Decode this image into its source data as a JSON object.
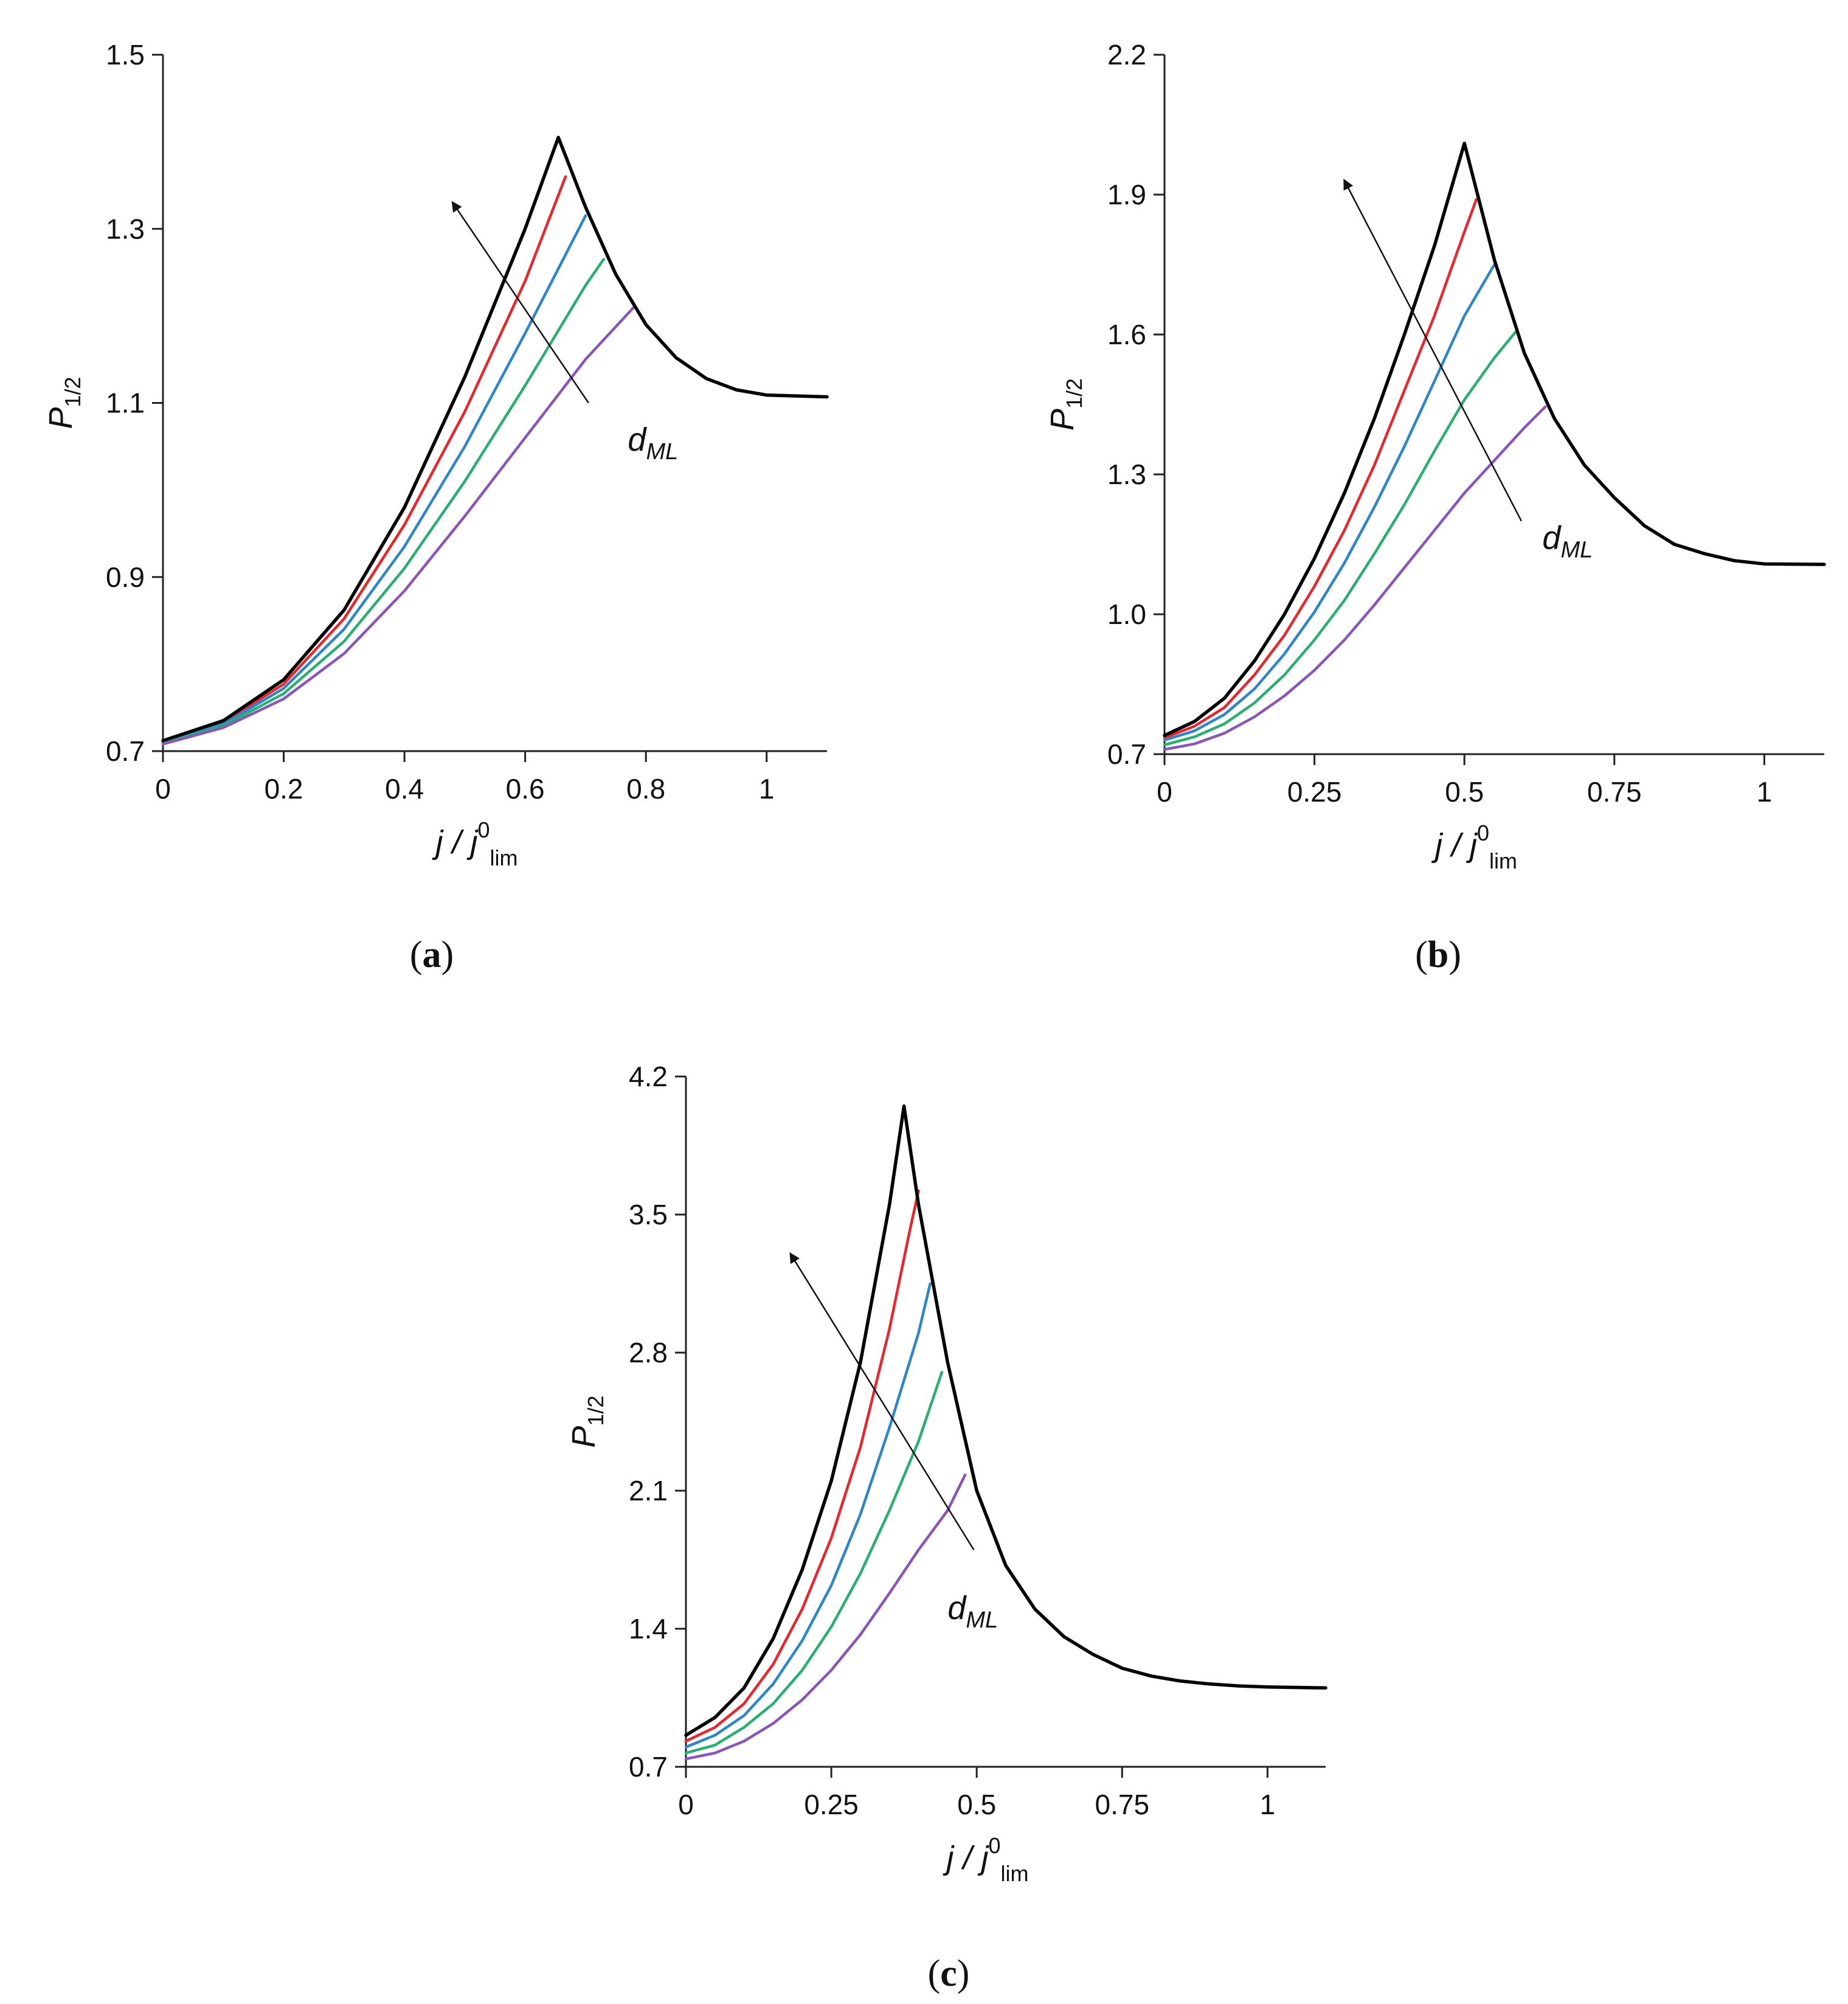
{
  "figure": {
    "panel_labels": [
      {
        "open": "(",
        "letter": "a",
        "close": ")"
      },
      {
        "open": "(",
        "letter": "b",
        "close": ")"
      },
      {
        "open": "(",
        "letter": "c",
        "close": ")"
      }
    ]
  },
  "colors": {
    "black": "#000000",
    "red": "#e8262b",
    "blue": "#2e86c8",
    "green": "#2aae72",
    "purple": "#8a55b8",
    "axis": "#222222"
  },
  "chart_data": [
    {
      "type": "line",
      "panel": "a",
      "xlabel": {
        "main": "j / j",
        "sup": "0",
        "sub": "lim"
      },
      "ylabel": {
        "main": "P",
        "sub": "1/2"
      },
      "xlim": [
        0,
        1.1
      ],
      "ylim": [
        0.7,
        1.5
      ],
      "xticks": [
        0,
        0.2,
        0.4,
        0.6,
        0.8,
        1
      ],
      "xtick_labels": [
        "0",
        "0.2",
        "0.4",
        "0.6",
        "0.8",
        "1"
      ],
      "yticks": [
        0.7,
        0.9,
        1.1,
        1.3,
        1.5
      ],
      "ytick_labels": [
        "0.7",
        "0.9",
        "1.1",
        "1.3",
        "1.5"
      ],
      "grid": false,
      "annotation": {
        "text_main": "d",
        "text_sub": "ML",
        "arrow_from": [
          0.705,
          1.1
        ],
        "arrow_to": [
          0.48,
          1.33
        ],
        "text_at": [
          0.77,
          1.045
        ]
      },
      "series": [
        {
          "color": "black",
          "values": [
            [
              0,
              0.712
            ],
            [
              0.1,
              0.735
            ],
            [
              0.2,
              0.782
            ],
            [
              0.3,
              0.862
            ],
            [
              0.4,
              0.98
            ],
            [
              0.5,
              1.13
            ],
            [
              0.6,
              1.3
            ],
            [
              0.655,
              1.405
            ],
            [
              0.7,
              1.325
            ],
            [
              0.75,
              1.248
            ],
            [
              0.8,
              1.19
            ],
            [
              0.85,
              1.152
            ],
            [
              0.9,
              1.128
            ],
            [
              0.95,
              1.115
            ],
            [
              1.0,
              1.109
            ],
            [
              1.1,
              1.107
            ]
          ]
        },
        {
          "color": "red",
          "values": [
            [
              0,
              0.711
            ],
            [
              0.1,
              0.733
            ],
            [
              0.2,
              0.777
            ],
            [
              0.3,
              0.852
            ],
            [
              0.4,
              0.96
            ],
            [
              0.5,
              1.09
            ],
            [
              0.6,
              1.24
            ],
            [
              0.667,
              1.36
            ]
          ]
        },
        {
          "color": "blue",
          "values": [
            [
              0,
              0.71
            ],
            [
              0.1,
              0.731
            ],
            [
              0.2,
              0.772
            ],
            [
              0.3,
              0.84
            ],
            [
              0.4,
              0.935
            ],
            [
              0.5,
              1.05
            ],
            [
              0.6,
              1.18
            ],
            [
              0.7,
              1.315
            ]
          ]
        },
        {
          "color": "green",
          "values": [
            [
              0,
              0.709
            ],
            [
              0.1,
              0.729
            ],
            [
              0.2,
              0.766
            ],
            [
              0.3,
              0.826
            ],
            [
              0.4,
              0.91
            ],
            [
              0.5,
              1.01
            ],
            [
              0.6,
              1.12
            ],
            [
              0.7,
              1.235
            ],
            [
              0.73,
              1.265
            ]
          ]
        },
        {
          "color": "purple",
          "values": [
            [
              0,
              0.708
            ],
            [
              0.1,
              0.727
            ],
            [
              0.2,
              0.76
            ],
            [
              0.3,
              0.812
            ],
            [
              0.4,
              0.884
            ],
            [
              0.5,
              0.97
            ],
            [
              0.6,
              1.06
            ],
            [
              0.7,
              1.15
            ],
            [
              0.78,
              1.21
            ]
          ]
        }
      ]
    },
    {
      "type": "line",
      "panel": "b",
      "xlabel": {
        "main": "j / j",
        "sup": "0",
        "sub": "lim"
      },
      "ylabel": {
        "main": "P",
        "sub": "1/2"
      },
      "xlim": [
        0,
        1.1
      ],
      "ylim": [
        0.7,
        2.2
      ],
      "xticks": [
        0,
        0.25,
        0.5,
        0.75,
        1
      ],
      "xtick_labels": [
        "0",
        "0.25",
        "0.5",
        "0.75",
        "1"
      ],
      "yticks": [
        0.7,
        1.0,
        1.3,
        1.6,
        1.9,
        2.2
      ],
      "ytick_labels": [
        "0.7",
        "1.0",
        "1.3",
        "1.6",
        "1.9",
        "2.2"
      ],
      "grid": false,
      "annotation": {
        "text_main": "d",
        "text_sub": "ML",
        "arrow_from": [
          0.595,
          1.2
        ],
        "arrow_to": [
          0.3,
          1.93
        ],
        "text_at": [
          0.63,
          1.14
        ]
      },
      "series": [
        {
          "color": "black",
          "values": [
            [
              0,
              0.74
            ],
            [
              0.05,
              0.77
            ],
            [
              0.1,
              0.82
            ],
            [
              0.15,
              0.9
            ],
            [
              0.2,
              1.0
            ],
            [
              0.25,
              1.12
            ],
            [
              0.3,
              1.26
            ],
            [
              0.35,
              1.42
            ],
            [
              0.4,
              1.6
            ],
            [
              0.45,
              1.79
            ],
            [
              0.5,
              2.01
            ],
            [
              0.55,
              1.76
            ],
            [
              0.6,
              1.56
            ],
            [
              0.65,
              1.42
            ],
            [
              0.7,
              1.32
            ],
            [
              0.75,
              1.25
            ],
            [
              0.8,
              1.19
            ],
            [
              0.85,
              1.15
            ],
            [
              0.9,
              1.13
            ],
            [
              0.95,
              1.115
            ],
            [
              1.0,
              1.108
            ],
            [
              1.1,
              1.107
            ]
          ]
        },
        {
          "color": "red",
          "values": [
            [
              0,
              0.735
            ],
            [
              0.05,
              0.76
            ],
            [
              0.1,
              0.8
            ],
            [
              0.15,
              0.87
            ],
            [
              0.2,
              0.955
            ],
            [
              0.25,
              1.06
            ],
            [
              0.3,
              1.18
            ],
            [
              0.35,
              1.32
            ],
            [
              0.4,
              1.48
            ],
            [
              0.45,
              1.64
            ],
            [
              0.5,
              1.82
            ],
            [
              0.52,
              1.89
            ]
          ]
        },
        {
          "color": "blue",
          "values": [
            [
              0,
              0.73
            ],
            [
              0.05,
              0.75
            ],
            [
              0.1,
              0.785
            ],
            [
              0.15,
              0.84
            ],
            [
              0.2,
              0.915
            ],
            [
              0.25,
              1.005
            ],
            [
              0.3,
              1.11
            ],
            [
              0.35,
              1.23
            ],
            [
              0.4,
              1.36
            ],
            [
              0.45,
              1.5
            ],
            [
              0.5,
              1.64
            ],
            [
              0.55,
              1.75
            ]
          ]
        },
        {
          "color": "green",
          "values": [
            [
              0,
              0.72
            ],
            [
              0.05,
              0.737
            ],
            [
              0.1,
              0.765
            ],
            [
              0.15,
              0.81
            ],
            [
              0.2,
              0.87
            ],
            [
              0.25,
              0.945
            ],
            [
              0.3,
              1.03
            ],
            [
              0.35,
              1.13
            ],
            [
              0.4,
              1.235
            ],
            [
              0.45,
              1.35
            ],
            [
              0.5,
              1.46
            ],
            [
              0.55,
              1.55
            ],
            [
              0.585,
              1.605
            ]
          ]
        },
        {
          "color": "purple",
          "values": [
            [
              0,
              0.71
            ],
            [
              0.05,
              0.722
            ],
            [
              0.1,
              0.745
            ],
            [
              0.15,
              0.78
            ],
            [
              0.2,
              0.825
            ],
            [
              0.25,
              0.88
            ],
            [
              0.3,
              0.945
            ],
            [
              0.35,
              1.02
            ],
            [
              0.4,
              1.1
            ],
            [
              0.45,
              1.18
            ],
            [
              0.5,
              1.26
            ],
            [
              0.55,
              1.33
            ],
            [
              0.6,
              1.4
            ],
            [
              0.635,
              1.445
            ]
          ]
        }
      ]
    },
    {
      "type": "line",
      "panel": "c",
      "xlabel": {
        "main": "j / j",
        "sup": "0",
        "sub": "lim"
      },
      "ylabel": {
        "main": "P",
        "sub": "1/2"
      },
      "xlim": [
        0,
        1.1
      ],
      "ylim": [
        0.7,
        4.2
      ],
      "xticks": [
        0,
        0.25,
        0.5,
        0.75,
        1
      ],
      "xtick_labels": [
        "0",
        "0.25",
        "0.5",
        "0.75",
        "1"
      ],
      "yticks": [
        0.7,
        1.4,
        2.1,
        2.8,
        3.5,
        4.2
      ],
      "ytick_labels": [
        "0.7",
        "1.4",
        "2.1",
        "2.8",
        "3.5",
        "4.2"
      ],
      "grid": false,
      "annotation": {
        "text_main": "d",
        "text_sub": "ML",
        "arrow_from": [
          0.495,
          1.8
        ],
        "arrow_to": [
          0.18,
          3.3
        ],
        "text_at": [
          0.45,
          1.45
        ]
      },
      "series": [
        {
          "color": "black",
          "values": [
            [
              0,
              0.86
            ],
            [
              0.05,
              0.95
            ],
            [
              0.1,
              1.1
            ],
            [
              0.15,
              1.35
            ],
            [
              0.2,
              1.7
            ],
            [
              0.25,
              2.15
            ],
            [
              0.3,
              2.75
            ],
            [
              0.35,
              3.55
            ],
            [
              0.375,
              4.05
            ],
            [
              0.4,
              3.55
            ],
            [
              0.45,
              2.75
            ],
            [
              0.5,
              2.1
            ],
            [
              0.55,
              1.72
            ],
            [
              0.6,
              1.5
            ],
            [
              0.65,
              1.36
            ],
            [
              0.7,
              1.27
            ],
            [
              0.75,
              1.2
            ],
            [
              0.8,
              1.16
            ],
            [
              0.85,
              1.135
            ],
            [
              0.9,
              1.12
            ],
            [
              0.95,
              1.11
            ],
            [
              1.0,
              1.105
            ],
            [
              1.1,
              1.1
            ]
          ]
        },
        {
          "color": "red",
          "values": [
            [
              0,
              0.83
            ],
            [
              0.05,
              0.9
            ],
            [
              0.1,
              1.02
            ],
            [
              0.15,
              1.22
            ],
            [
              0.2,
              1.5
            ],
            [
              0.25,
              1.86
            ],
            [
              0.3,
              2.32
            ],
            [
              0.35,
              2.92
            ],
            [
              0.385,
              3.42
            ],
            [
              0.4,
              3.62
            ]
          ]
        },
        {
          "color": "blue",
          "values": [
            [
              0,
              0.8
            ],
            [
              0.05,
              0.86
            ],
            [
              0.1,
              0.96
            ],
            [
              0.15,
              1.12
            ],
            [
              0.2,
              1.34
            ],
            [
              0.25,
              1.62
            ],
            [
              0.3,
              1.98
            ],
            [
              0.35,
              2.42
            ],
            [
              0.4,
              2.9
            ],
            [
              0.42,
              3.15
            ]
          ]
        },
        {
          "color": "green",
          "values": [
            [
              0,
              0.77
            ],
            [
              0.05,
              0.81
            ],
            [
              0.1,
              0.9
            ],
            [
              0.15,
              1.02
            ],
            [
              0.2,
              1.19
            ],
            [
              0.25,
              1.41
            ],
            [
              0.3,
              1.68
            ],
            [
              0.35,
              2.0
            ],
            [
              0.4,
              2.35
            ],
            [
              0.44,
              2.7
            ]
          ]
        },
        {
          "color": "purple",
          "values": [
            [
              0,
              0.74
            ],
            [
              0.05,
              0.77
            ],
            [
              0.1,
              0.83
            ],
            [
              0.15,
              0.92
            ],
            [
              0.2,
              1.04
            ],
            [
              0.25,
              1.19
            ],
            [
              0.3,
              1.37
            ],
            [
              0.35,
              1.58
            ],
            [
              0.4,
              1.8
            ],
            [
              0.45,
              2.0
            ],
            [
              0.48,
              2.18
            ]
          ]
        }
      ]
    }
  ]
}
